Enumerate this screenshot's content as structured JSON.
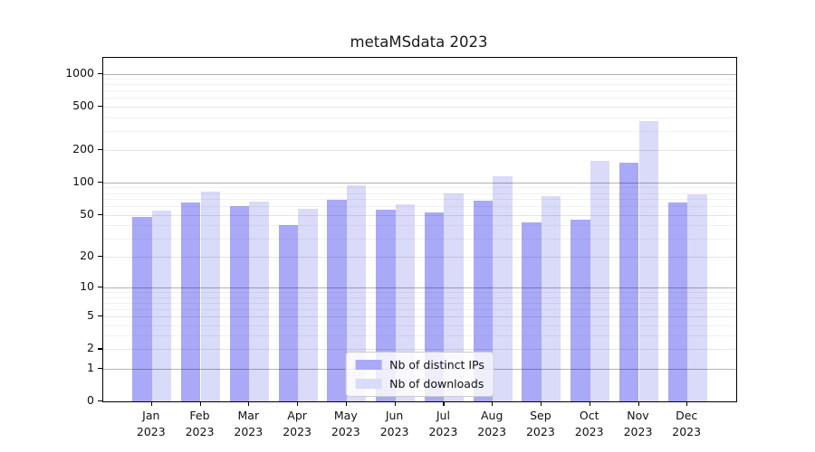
{
  "figure": {
    "title": "metaMSdata 2023"
  },
  "chart_data": {
    "type": "bar",
    "title": "metaMSdata 2023",
    "categories": [
      "Jan",
      "Feb",
      "Mar",
      "Apr",
      "May",
      "Jun",
      "Jul",
      "Aug",
      "Sep",
      "Oct",
      "Nov",
      "Dec"
    ],
    "x_year": "2023",
    "series": [
      {
        "id": "distinct-ips",
        "name": "Nb of distinct IPs",
        "color": "#a9a9f7",
        "values": [
          48,
          66,
          60,
          40,
          69,
          56,
          53,
          68,
          43,
          45,
          153,
          66
        ]
      },
      {
        "id": "downloads",
        "name": "Nb of downloads",
        "color": "#dadaf9",
        "values": [
          55,
          82,
          67,
          57,
          95,
          63,
          79,
          115,
          75,
          160,
          368,
          78
        ]
      }
    ],
    "xlabel": "",
    "ylabel": "",
    "yscale": "log1p",
    "ylim": [
      0,
      1400
    ],
    "yticks": [
      0,
      1,
      2,
      5,
      10,
      20,
      50,
      100,
      200,
      500,
      1000
    ],
    "yticks_minor": [
      3,
      4,
      6,
      7,
      8,
      9,
      30,
      40,
      60,
      70,
      80,
      90,
      300,
      400,
      600,
      700,
      800,
      900
    ],
    "grid": true,
    "legend_position": "lower-center"
  }
}
